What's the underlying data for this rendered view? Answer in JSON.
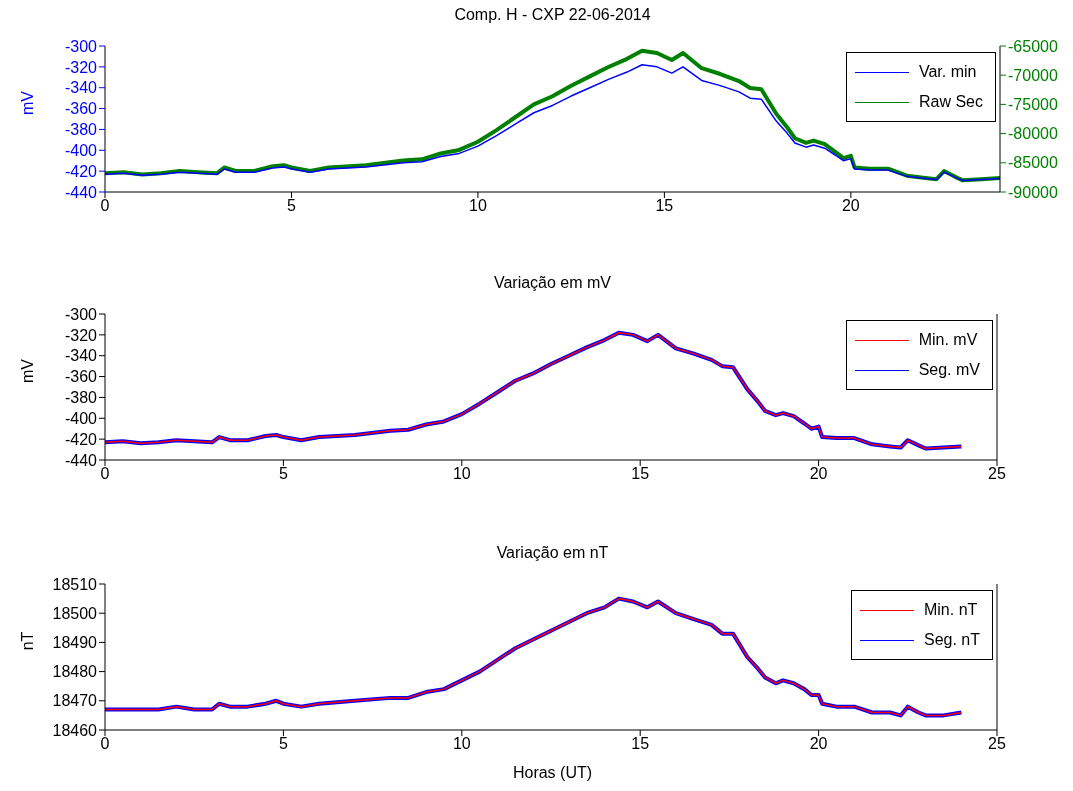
{
  "chart_data": [
    {
      "type": "line",
      "title": "Comp. H - CXP 22-06-2014",
      "ylabel": "mV",
      "x": [
        0,
        0.5,
        1,
        1.5,
        2,
        2.5,
        3,
        3.2,
        3.5,
        4,
        4.5,
        4.8,
        5,
        5.5,
        6,
        7,
        8,
        8.5,
        9,
        9.5,
        10,
        10.5,
        11,
        11.5,
        12,
        12.5,
        13,
        13.5,
        14,
        14.4,
        14.8,
        15.2,
        15.5,
        16,
        16.5,
        17,
        17.3,
        17.6,
        18,
        18.3,
        18.5,
        18.8,
        19,
        19.3,
        19.6,
        19.8,
        20,
        20.1,
        20.5,
        21,
        21.5,
        22,
        22.3,
        22.5,
        22.8,
        23,
        23.5,
        24
      ],
      "series": [
        {
          "name": "Var. min",
          "color": "#0000ff",
          "values": [
            -423,
            -422,
            -424,
            -423,
            -421,
            -422,
            -423,
            -418,
            -421,
            -421,
            -417,
            -416,
            -418,
            -421,
            -418,
            -416,
            -412,
            -411,
            -406,
            -403,
            -396,
            -386,
            -375,
            -364,
            -357,
            -348,
            -340,
            -332,
            -325,
            -318,
            -320,
            -326,
            -320,
            -333,
            -338,
            -344,
            -350,
            -351,
            -372,
            -384,
            -393,
            -397,
            -395,
            -398,
            -405,
            -410,
            -408,
            -418,
            -419,
            -419,
            -425,
            -427,
            -428,
            -421,
            -426,
            -429,
            -428,
            -427
          ]
        },
        {
          "name": "Raw Sec",
          "color": "#008000",
          "axis": "y2",
          "values": [
            -86800,
            -86600,
            -87000,
            -86800,
            -86400,
            -86600,
            -86800,
            -85800,
            -86400,
            -86400,
            -85600,
            -85400,
            -85800,
            -86400,
            -85800,
            -85400,
            -84600,
            -84400,
            -83400,
            -82800,
            -81400,
            -79400,
            -77200,
            -75000,
            -73600,
            -71800,
            -70200,
            -68600,
            -67200,
            -65800,
            -66200,
            -67400,
            -66200,
            -68800,
            -69800,
            -71000,
            -72200,
            -72400,
            -76600,
            -79000,
            -80800,
            -81600,
            -81200,
            -81800,
            -83200,
            -84200,
            -83800,
            -85800,
            -86000,
            -86000,
            -87200,
            -87600,
            -87800,
            -86400,
            -87400,
            -88000,
            -87800,
            -87600
          ]
        }
      ],
      "xlim": [
        0,
        24
      ],
      "xticks": [
        0,
        5,
        10,
        15,
        20
      ],
      "ylim": [
        -440,
        -300
      ],
      "yticks": [
        -440,
        -420,
        -400,
        -380,
        -360,
        -340,
        -320,
        -300
      ],
      "y2lim": [
        -90000,
        -65000
      ],
      "y2ticks": [
        -90000,
        -85000,
        -80000,
        -75000,
        -70000,
        -65000
      ],
      "legend": "top right",
      "grid": false
    },
    {
      "type": "line",
      "title": "Variação em mV",
      "ylabel": "mV",
      "x": [
        0,
        0.5,
        1,
        1.5,
        2,
        2.5,
        3,
        3.2,
        3.5,
        4,
        4.5,
        4.8,
        5,
        5.5,
        6,
        7,
        8,
        8.5,
        9,
        9.5,
        10,
        10.5,
        11,
        11.5,
        12,
        12.5,
        13,
        13.5,
        14,
        14.4,
        14.8,
        15.2,
        15.5,
        16,
        16.5,
        17,
        17.3,
        17.6,
        18,
        18.3,
        18.5,
        18.8,
        19,
        19.3,
        19.6,
        19.8,
        20,
        20.1,
        20.5,
        21,
        21.5,
        22,
        22.3,
        22.5,
        22.8,
        23,
        23.5,
        24
      ],
      "series": [
        {
          "name": "Min. mV",
          "color": "#ff0000",
          "values": [
            -423,
            -422,
            -424,
            -423,
            -421,
            -422,
            -423,
            -418,
            -421,
            -421,
            -417,
            -416,
            -418,
            -421,
            -418,
            -416,
            -412,
            -411,
            -406,
            -403,
            -396,
            -386,
            -375,
            -364,
            -357,
            -348,
            -340,
            -332,
            -325,
            -318,
            -320,
            -326,
            -320,
            -333,
            -338,
            -344,
            -350,
            -351,
            -372,
            -384,
            -393,
            -397,
            -395,
            -398,
            -405,
            -410,
            -408,
            -418,
            -419,
            -419,
            -425,
            -427,
            -428,
            -421,
            -426,
            -429,
            -428,
            -427
          ]
        },
        {
          "name": "Seg. mV",
          "color": "#0000ff",
          "values": [
            -423,
            -422,
            -424,
            -423,
            -421,
            -422,
            -423,
            -418,
            -421,
            -421,
            -417,
            -416,
            -418,
            -421,
            -418,
            -416,
            -412,
            -411,
            -406,
            -403,
            -396,
            -386,
            -375,
            -364,
            -357,
            -348,
            -340,
            -332,
            -325,
            -318,
            -320,
            -326,
            -320,
            -333,
            -338,
            -344,
            -350,
            -351,
            -372,
            -384,
            -393,
            -397,
            -395,
            -398,
            -405,
            -410,
            -408,
            -418,
            -419,
            -419,
            -425,
            -427,
            -428,
            -421,
            -426,
            -429,
            -428,
            -427
          ]
        }
      ],
      "xlim": [
        0,
        25
      ],
      "xticks": [
        0,
        5,
        10,
        15,
        20,
        25
      ],
      "ylim": [
        -440,
        -300
      ],
      "yticks": [
        -440,
        -420,
        -400,
        -380,
        -360,
        -340,
        -320,
        -300
      ],
      "legend": "top right",
      "grid": false
    },
    {
      "type": "line",
      "title": "Variação em nT",
      "ylabel": "nT",
      "xlabel": "Horas (UT)",
      "x": [
        0,
        0.5,
        1,
        1.5,
        2,
        2.5,
        3,
        3.2,
        3.5,
        4,
        4.5,
        4.8,
        5,
        5.5,
        6,
        7,
        8,
        8.5,
        9,
        9.5,
        10,
        10.5,
        11,
        11.5,
        12,
        12.5,
        13,
        13.5,
        14,
        14.4,
        14.8,
        15.2,
        15.5,
        16,
        16.5,
        17,
        17.3,
        17.6,
        18,
        18.3,
        18.5,
        18.8,
        19,
        19.3,
        19.6,
        19.8,
        20,
        20.1,
        20.5,
        21,
        21.5,
        22,
        22.3,
        22.5,
        22.8,
        23,
        23.5,
        24
      ],
      "series": [
        {
          "name": "Min. nT",
          "color": "#ff0000",
          "values": [
            18467,
            18467,
            18467,
            18467,
            18468,
            18467,
            18467,
            18469,
            18468,
            18468,
            18469,
            18470,
            18469,
            18468,
            18469,
            18470,
            18471,
            18471,
            18473,
            18474,
            18477,
            18480,
            18484,
            18488,
            18491,
            18494,
            18497,
            18500,
            18502,
            18505,
            18504,
            18502,
            18504,
            18500,
            18498,
            18496,
            18493,
            18493,
            18485,
            18481,
            18478,
            18476,
            18477,
            18476,
            18474,
            18472,
            18472,
            18469,
            18468,
            18468,
            18466,
            18466,
            18465,
            18468,
            18466,
            18465,
            18465,
            18466
          ]
        },
        {
          "name": "Seg. nT",
          "color": "#0000ff",
          "values": [
            18467,
            18467,
            18467,
            18467,
            18468,
            18467,
            18467,
            18469,
            18468,
            18468,
            18469,
            18470,
            18469,
            18468,
            18469,
            18470,
            18471,
            18471,
            18473,
            18474,
            18477,
            18480,
            18484,
            18488,
            18491,
            18494,
            18497,
            18500,
            18502,
            18505,
            18504,
            18502,
            18504,
            18500,
            18498,
            18496,
            18493,
            18493,
            18485,
            18481,
            18478,
            18476,
            18477,
            18476,
            18474,
            18472,
            18472,
            18469,
            18468,
            18468,
            18466,
            18466,
            18465,
            18468,
            18466,
            18465,
            18465,
            18466
          ]
        }
      ],
      "xlim": [
        0,
        25
      ],
      "xticks": [
        0,
        5,
        10,
        15,
        20,
        25
      ],
      "ylim": [
        18460,
        18510
      ],
      "yticks": [
        18460,
        18470,
        18480,
        18490,
        18500,
        18510
      ],
      "legend": "top right",
      "grid": false
    }
  ]
}
